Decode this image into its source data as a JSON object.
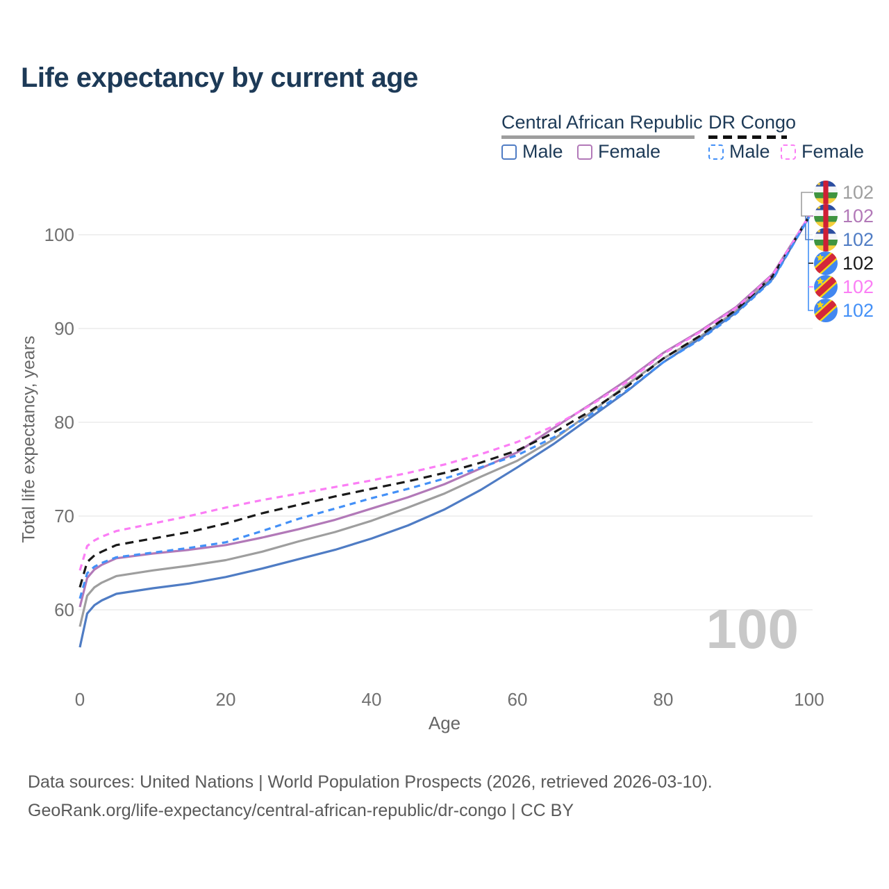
{
  "title": "Life expectancy by current age",
  "legend": {
    "groups": [
      {
        "label": "Central African Republic",
        "underline_color": "#9e9e9e",
        "underline_dashed": false,
        "items": [
          {
            "label": "Male",
            "color": "#4f7cc4",
            "dashed": false
          },
          {
            "label": "Female",
            "color": "#b279b8",
            "dashed": false
          }
        ]
      },
      {
        "label": "DR Congo",
        "underline_color": "#111111",
        "underline_dashed": true,
        "items": [
          {
            "label": "Male",
            "color": "#4390f7",
            "dashed": true
          },
          {
            "label": "Female",
            "color": "#fb7ef5",
            "dashed": true
          }
        ]
      }
    ]
  },
  "chart_data": {
    "type": "line",
    "title": "Life expectancy by current age",
    "xlabel": "Age",
    "ylabel": "Total life expectancy, years",
    "x_ticks": [
      0,
      20,
      40,
      60,
      80,
      100
    ],
    "y_ticks": [
      60,
      70,
      80,
      90,
      100
    ],
    "xlim": [
      0,
      100
    ],
    "ylim": [
      56,
      103
    ],
    "grid": "horizontal",
    "legend_position": "top-right",
    "ages": [
      0,
      1,
      2,
      3,
      5,
      10,
      15,
      20,
      25,
      30,
      35,
      40,
      45,
      50,
      55,
      60,
      65,
      70,
      75,
      80,
      85,
      90,
      95,
      100
    ],
    "series": [
      {
        "country": "Central African Republic",
        "group": "All",
        "color": "#9e9e9e",
        "dashed": false,
        "values": [
          58.2,
          61.5,
          62.4,
          62.9,
          63.6,
          64.2,
          64.7,
          65.3,
          66.2,
          67.3,
          68.3,
          69.5,
          70.9,
          72.4,
          74.2,
          75.9,
          78.2,
          81.0,
          84.0,
          86.8,
          89.1,
          91.9,
          95.5,
          101.95
        ]
      },
      {
        "country": "Central African Republic",
        "group": "Female",
        "color": "#b279b8",
        "dashed": false,
        "values": [
          60.3,
          63.4,
          64.3,
          64.8,
          65.5,
          66.0,
          66.4,
          66.9,
          67.7,
          68.6,
          69.6,
          70.8,
          72.0,
          73.4,
          75.1,
          76.8,
          79.4,
          81.9,
          84.5,
          87.4,
          89.7,
          92.3,
          95.8,
          102.0
        ]
      },
      {
        "country": "Central African Republic",
        "group": "Male",
        "color": "#4f7cc4",
        "dashed": false,
        "values": [
          56.0,
          59.6,
          60.5,
          61.0,
          61.7,
          62.3,
          62.8,
          63.5,
          64.4,
          65.4,
          66.4,
          67.6,
          69.0,
          70.7,
          72.8,
          75.2,
          77.7,
          80.5,
          83.3,
          86.4,
          88.9,
          91.7,
          95.3,
          101.9
        ]
      },
      {
        "country": "DR Congo",
        "group": "All",
        "color": "#1a1a1a",
        "dashed": true,
        "values": [
          62.4,
          65.1,
          65.8,
          66.2,
          66.9,
          67.6,
          68.3,
          69.2,
          70.3,
          71.2,
          72.1,
          72.9,
          73.7,
          74.6,
          75.7,
          77.0,
          78.9,
          81.2,
          83.8,
          86.8,
          89.2,
          92.0,
          95.6,
          101.95
        ]
      },
      {
        "country": "DR Congo",
        "group": "Female",
        "color": "#fb7ef5",
        "dashed": true,
        "values": [
          64.2,
          66.8,
          67.4,
          67.8,
          68.4,
          69.2,
          70.0,
          70.9,
          71.7,
          72.4,
          73.1,
          73.8,
          74.6,
          75.5,
          76.6,
          77.9,
          79.6,
          81.8,
          84.3,
          87.3,
          89.6,
          92.2,
          95.7,
          101.98
        ]
      },
      {
        "country": "DR Congo",
        "group": "Male",
        "color": "#4390f7",
        "dashed": true,
        "values": [
          61.2,
          63.9,
          64.6,
          65.0,
          65.6,
          66.1,
          66.6,
          67.2,
          68.4,
          69.7,
          70.8,
          71.9,
          72.9,
          74.0,
          75.2,
          76.5,
          78.4,
          80.8,
          83.4,
          86.4,
          88.8,
          91.6,
          95.2,
          101.9
        ]
      }
    ],
    "end_labels": [
      {
        "flag": "CAR",
        "value": "102",
        "color": "#9e9e9e"
      },
      {
        "flag": "CAR",
        "value": "102",
        "color": "#b279b8"
      },
      {
        "flag": "CAR",
        "value": "102",
        "color": "#4f7cc4"
      },
      {
        "flag": "DRC",
        "value": "102",
        "color": "#1a1a1a"
      },
      {
        "flag": "DRC",
        "value": "102",
        "color": "#fb7ef5"
      },
      {
        "flag": "DRC",
        "value": "102",
        "color": "#4390f7"
      }
    ],
    "age_counter_watermark": "100"
  },
  "axes": {
    "x_label": "Age",
    "y_label": "Total life expectancy, years",
    "x_tick_labels": [
      "0",
      "20",
      "40",
      "60",
      "80",
      "100"
    ],
    "y_tick_labels": [
      "60",
      "70",
      "80",
      "90",
      "100"
    ]
  },
  "watermark": "100",
  "footer": {
    "line1": "Data sources: United Nations | World Population Prospects (2026, retrieved 2026-03-10).",
    "line2": "GeoRank.org/life-expectancy/central-african-republic/dr-congo | CC BY"
  },
  "colors": {
    "title": "#1d3a57",
    "tick": "#707070",
    "grid": "#ebebeb",
    "watermark": "#c8c8c8",
    "footer": "#595959"
  }
}
